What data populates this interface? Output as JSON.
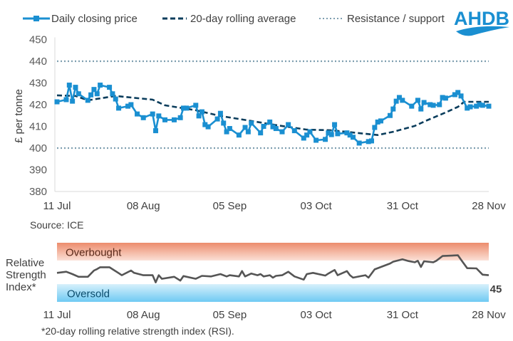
{
  "logo": {
    "text": "AHDB",
    "color": "#1a8fd1"
  },
  "source": "Source: ICE",
  "footnote": "*20-day rolling relative strength index (RSI).",
  "chart_data": [
    {
      "type": "line",
      "ylabel": "£ per tonne",
      "ylim": [
        380,
        450
      ],
      "yticks": [
        380,
        390,
        400,
        410,
        420,
        430,
        440,
        450
      ],
      "xticks": [
        "11 Jul",
        "08 Aug",
        "05 Sep",
        "03 Oct",
        "31 Oct",
        "28 Nov"
      ],
      "grid": false,
      "legend": "top",
      "series": [
        {
          "name": "Daily closing price",
          "color": "#1a8fd1",
          "style": "solid-with-square-markers",
          "points": [
            [
              "11 Jul",
              421.3
            ],
            [
              "14 Jul",
              422.3
            ],
            [
              "15 Jul",
              429
            ],
            [
              "16 Jul",
              421.6
            ],
            [
              "17 Jul",
              428
            ],
            [
              "18 Jul",
              425
            ],
            [
              "21 Jul",
              422
            ],
            [
              "22 Jul",
              424.5
            ],
            [
              "23 Jul",
              427
            ],
            [
              "24 Jul",
              425
            ],
            [
              "25 Jul",
              429
            ],
            [
              "28 Jul",
              428
            ],
            [
              "29 Jul",
              425
            ],
            [
              "30 Jul",
              422.6
            ],
            [
              "31 Jul",
              418.4
            ],
            [
              "03 Aug",
              419.3
            ],
            [
              "04 Aug",
              420
            ],
            [
              "06 Aug",
              415.7
            ],
            [
              "08 Aug",
              414
            ],
            [
              "11 Aug",
              415.7
            ],
            [
              "12 Aug",
              408
            ],
            [
              "13 Aug",
              414.8
            ],
            [
              "15 Aug",
              413
            ],
            [
              "18 Aug",
              413
            ],
            [
              "20 Aug",
              414
            ],
            [
              "21 Aug",
              418.4
            ],
            [
              "22 Aug",
              418.4
            ],
            [
              "25 Aug",
              419.7
            ],
            [
              "26 Aug",
              414.8
            ],
            [
              "27 Aug",
              416.7
            ],
            [
              "28 Aug",
              410.8
            ],
            [
              "29 Aug",
              409.8
            ],
            [
              "01 Sep",
              413.4
            ],
            [
              "02 Sep",
              416
            ],
            [
              "03 Sep",
              411.5
            ],
            [
              "04 Sep",
              407.5
            ],
            [
              "05 Sep",
              409
            ],
            [
              "08 Sep",
              406
            ],
            [
              "10 Sep",
              409.5
            ],
            [
              "11 Sep",
              407.5
            ],
            [
              "12 Sep",
              411.5
            ],
            [
              "15 Sep",
              407
            ],
            [
              "16 Sep",
              410
            ],
            [
              "18 Sep",
              412
            ],
            [
              "19 Sep",
              409.8
            ],
            [
              "20 Sep",
              409
            ],
            [
              "22 Sep",
              407.5
            ],
            [
              "24 Sep",
              410.8
            ],
            [
              "26 Sep",
              408
            ],
            [
              "29 Sep",
              404.6
            ],
            [
              "30 Sep",
              406
            ],
            [
              "01 Oct",
              407.5
            ],
            [
              "03 Oct",
              403.6
            ],
            [
              "06 Oct",
              404
            ],
            [
              "07 Oct",
              407
            ],
            [
              "08 Oct",
              406.2
            ],
            [
              "09 Oct",
              410.8
            ],
            [
              "10 Oct",
              406.6
            ],
            [
              "13 Oct",
              407
            ],
            [
              "14 Oct",
              406
            ],
            [
              "15 Oct",
              405
            ],
            [
              "17 Oct",
              402.3
            ],
            [
              "20 Oct",
              403
            ],
            [
              "21 Oct",
              403.3
            ],
            [
              "22 Oct",
              409.5
            ],
            [
              "23 Oct",
              412
            ],
            [
              "24 Oct",
              412.5
            ],
            [
              "27 Oct",
              415
            ],
            [
              "28 Oct",
              418
            ],
            [
              "29 Oct",
              421.6
            ],
            [
              "30 Oct",
              423.3
            ],
            [
              "31 Oct",
              422
            ],
            [
              "03 Nov",
              419.3
            ],
            [
              "05 Nov",
              422
            ],
            [
              "06 Nov",
              418
            ],
            [
              "07 Nov",
              421
            ],
            [
              "09 Nov",
              420
            ],
            [
              "10 Nov",
              419.7
            ],
            [
              "12 Nov",
              420
            ],
            [
              "13 Nov",
              423.3
            ],
            [
              "14 Nov",
              423
            ],
            [
              "17 Nov",
              424.6
            ],
            [
              "18 Nov",
              425.6
            ],
            [
              "19 Nov",
              424
            ],
            [
              "21 Nov",
              418.4
            ],
            [
              "22 Nov",
              419
            ],
            [
              "24 Nov",
              419.3
            ],
            [
              "25 Nov",
              420
            ],
            [
              "26 Nov",
              419.7
            ],
            [
              "28 Nov",
              419.3
            ]
          ]
        },
        {
          "name": "20-day rolling average",
          "color": "#0b3d5c",
          "style": "dashed",
          "points": [
            [
              "11 Jul",
              424.3
            ],
            [
              "17 Jul",
              424
            ],
            [
              "21 Jul",
              422
            ],
            [
              "30 Jul",
              424
            ],
            [
              "11 Aug",
              422.3
            ],
            [
              "15 Aug",
              419.7
            ],
            [
              "25 Aug",
              417.4
            ],
            [
              "02 Sep",
              414.8
            ],
            [
              "12 Sep",
              412.5
            ],
            [
              "20 Sep",
              410.6
            ],
            [
              "30 Sep",
              408.5
            ],
            [
              "08 Oct",
              408.2
            ],
            [
              "16 Oct",
              407
            ],
            [
              "23 Oct",
              406
            ],
            [
              "28 Oct",
              407.5
            ],
            [
              "04 Nov",
              410.2
            ],
            [
              "08 Nov",
              412.8
            ],
            [
              "14 Nov",
              416.4
            ],
            [
              "18 Nov",
              419
            ],
            [
              "20 Nov",
              421.3
            ],
            [
              "25 Nov",
              421.3
            ],
            [
              "28 Nov",
              421.3
            ]
          ]
        },
        {
          "name": "Resistance / support",
          "color": "#7f9fb0",
          "style": "dotted",
          "levels": [
            440,
            400
          ]
        }
      ]
    },
    {
      "type": "line",
      "ylabel": "Relative Strength Index*",
      "ylim": [
        0,
        100
      ],
      "xticks": [
        "11 Jul",
        "08 Aug",
        "05 Sep",
        "03 Oct",
        "31 Oct",
        "28 Nov"
      ],
      "bands": [
        {
          "label": "Overbought",
          "range": [
            70,
            100
          ],
          "color": "#f0a080"
        },
        {
          "label": "Oversold",
          "range": [
            0,
            30
          ],
          "color": "#7fd0f5"
        }
      ],
      "last_value_label": "45",
      "series": [
        {
          "color": "#555555",
          "points": [
            [
              "11 Jul",
              49
            ],
            [
              "14 Jul",
              51
            ],
            [
              "16 Jul",
              47
            ],
            [
              "18 Jul",
              42.4
            ],
            [
              "21 Jul",
              42.4
            ],
            [
              "23 Jul",
              53
            ],
            [
              "24 Jul",
              55.6
            ],
            [
              "25 Jul",
              58.5
            ],
            [
              "28 Jul",
              58.5
            ],
            [
              "31 Jul",
              48.5
            ],
            [
              "01 Aug",
              45
            ],
            [
              "04 Aug",
              53
            ],
            [
              "05 Aug",
              49
            ],
            [
              "08 Aug",
              45
            ],
            [
              "11 Aug",
              45
            ],
            [
              "12 Aug",
              33
            ],
            [
              "13 Aug",
              45
            ],
            [
              "14 Aug",
              39
            ],
            [
              "18 Aug",
              42.4
            ],
            [
              "20 Aug",
              36
            ],
            [
              "21 Aug",
              43.6
            ],
            [
              "25 Aug",
              39
            ],
            [
              "27 Aug",
              44
            ],
            [
              "30 Aug",
              43
            ],
            [
              "02 Sep",
              47
            ],
            [
              "04 Sep",
              43
            ],
            [
              "05 Sep",
              45
            ],
            [
              "08 Sep",
              43
            ],
            [
              "09 Sep",
              52
            ],
            [
              "10 Sep",
              43
            ],
            [
              "12 Sep",
              48
            ],
            [
              "14 Sep",
              45
            ],
            [
              "15 Sep",
              47
            ],
            [
              "16 Sep",
              43
            ],
            [
              "18 Sep",
              45
            ],
            [
              "19 Sep",
              41
            ],
            [
              "20 Sep",
              44
            ],
            [
              "22 Sep",
              45
            ],
            [
              "24 Sep",
              51
            ],
            [
              "26 Sep",
              43
            ],
            [
              "29 Sep",
              37.6
            ],
            [
              "30 Sep",
              47
            ],
            [
              "02 Oct",
              49
            ],
            [
              "06 Oct",
              44.4
            ],
            [
              "07 Oct",
              48
            ],
            [
              "09 Oct",
              54
            ],
            [
              "10 Oct",
              45
            ],
            [
              "13 Oct",
              52
            ],
            [
              "14 Oct",
              45
            ],
            [
              "15 Oct",
              41
            ],
            [
              "19 Oct",
              45
            ],
            [
              "20 Oct",
              41
            ],
            [
              "22 Oct",
              55
            ],
            [
              "27 Oct",
              65
            ],
            [
              "28 Oct",
              68
            ],
            [
              "31 Oct",
              72
            ],
            [
              "02 Nov",
              69
            ],
            [
              "04 Nov",
              67
            ],
            [
              "05 Nov",
              69.5
            ],
            [
              "06 Nov",
              59
            ],
            [
              "07 Nov",
              68.7
            ],
            [
              "10 Nov",
              67
            ],
            [
              "11 Nov",
              69.5
            ],
            [
              "13 Nov",
              77.6
            ],
            [
              "18 Nov",
              78.8
            ],
            [
              "19 Nov",
              71.5
            ],
            [
              "21 Nov",
              57
            ],
            [
              "24 Nov",
              56.6
            ],
            [
              "26 Nov",
              46
            ],
            [
              "28 Nov",
              45
            ]
          ]
        }
      ]
    }
  ]
}
